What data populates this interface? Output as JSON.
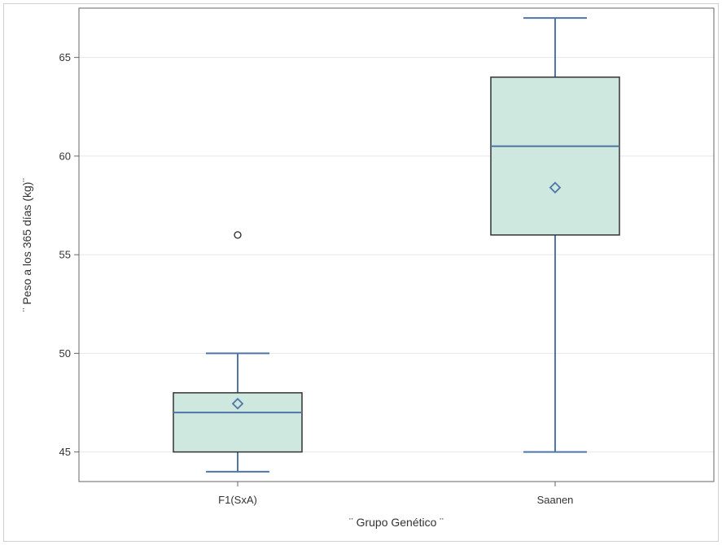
{
  "chart_data": {
    "type": "box",
    "xlabel": "¨ Grupo Genético ¨",
    "ylabel": "¨ Peso a los 365 días  (kg)¨",
    "ylim": [
      43.5,
      67.5
    ],
    "yticks": [
      45,
      50,
      55,
      60,
      65
    ],
    "grid": "horizontal",
    "categories": [
      "F1(SxA)",
      "Saanen"
    ],
    "boxes": [
      {
        "category": "F1(SxA)",
        "whisker_low": 44,
        "q1": 45,
        "median": 47,
        "q3": 48,
        "whisker_high": 50,
        "mean": 47.45,
        "outliers": [
          56
        ]
      },
      {
        "category": "Saanen",
        "whisker_low": 45,
        "q1": 56,
        "median": 60.5,
        "q3": 64,
        "whisker_high": 67,
        "mean": 58.4,
        "outliers": []
      }
    ],
    "colors": {
      "box_fill": "#cfe8df",
      "box_stroke": "#333333",
      "whisker": "#4e76a6",
      "mean_marker": "#4e76a6",
      "grid": "#e6e6e6",
      "frame": "#666666"
    }
  }
}
